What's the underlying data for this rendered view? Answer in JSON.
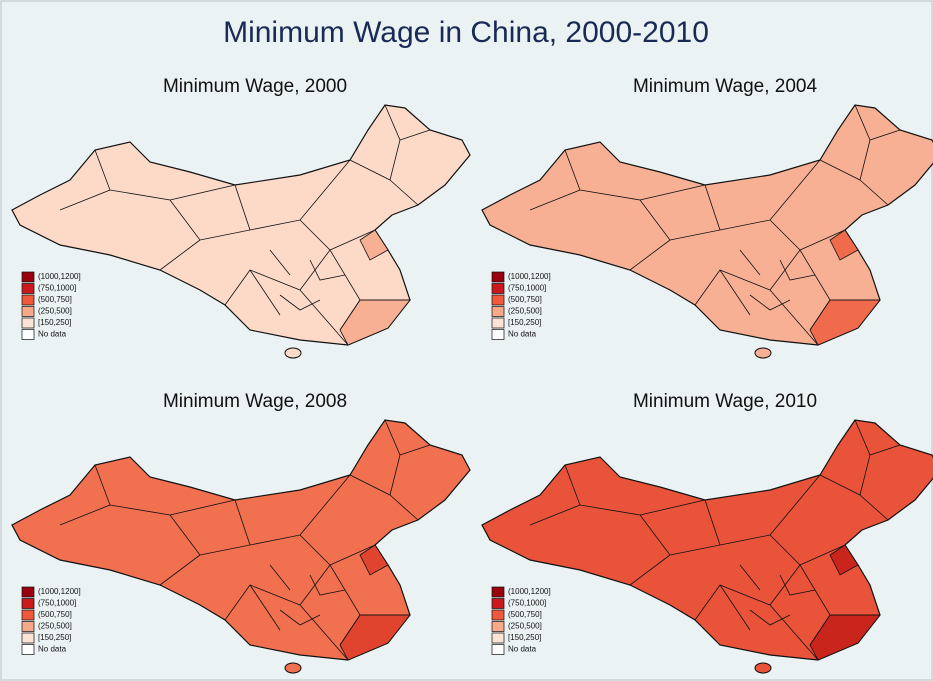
{
  "title": "Minimum Wage in China, 2000-2010",
  "legend": [
    {
      "label": "(1000,1200]",
      "color": "#99000d"
    },
    {
      "label": "(750,1000]",
      "color": "#cb181d"
    },
    {
      "label": "(500,750]",
      "color": "#ef5a3c"
    },
    {
      "label": "(250,500]",
      "color": "#f8a98a"
    },
    {
      "label": "[150,250]",
      "color": "#fde3d6"
    },
    {
      "label": "No data",
      "color": "#ffffff"
    }
  ],
  "maps": [
    {
      "title": "Minimum Wage, 2000",
      "color": "#fdd9c8",
      "accent": "#f8b094"
    },
    {
      "title": "Minimum Wage, 2004",
      "color": "#f8b094",
      "accent": "#ef6b4c"
    },
    {
      "title": "Minimum Wage, 2008",
      "color": "#f1704f",
      "accent": "#e0442e"
    },
    {
      "title": "Minimum Wage, 2010",
      "color": "#e9533a",
      "accent": "#c9251c"
    }
  ]
}
